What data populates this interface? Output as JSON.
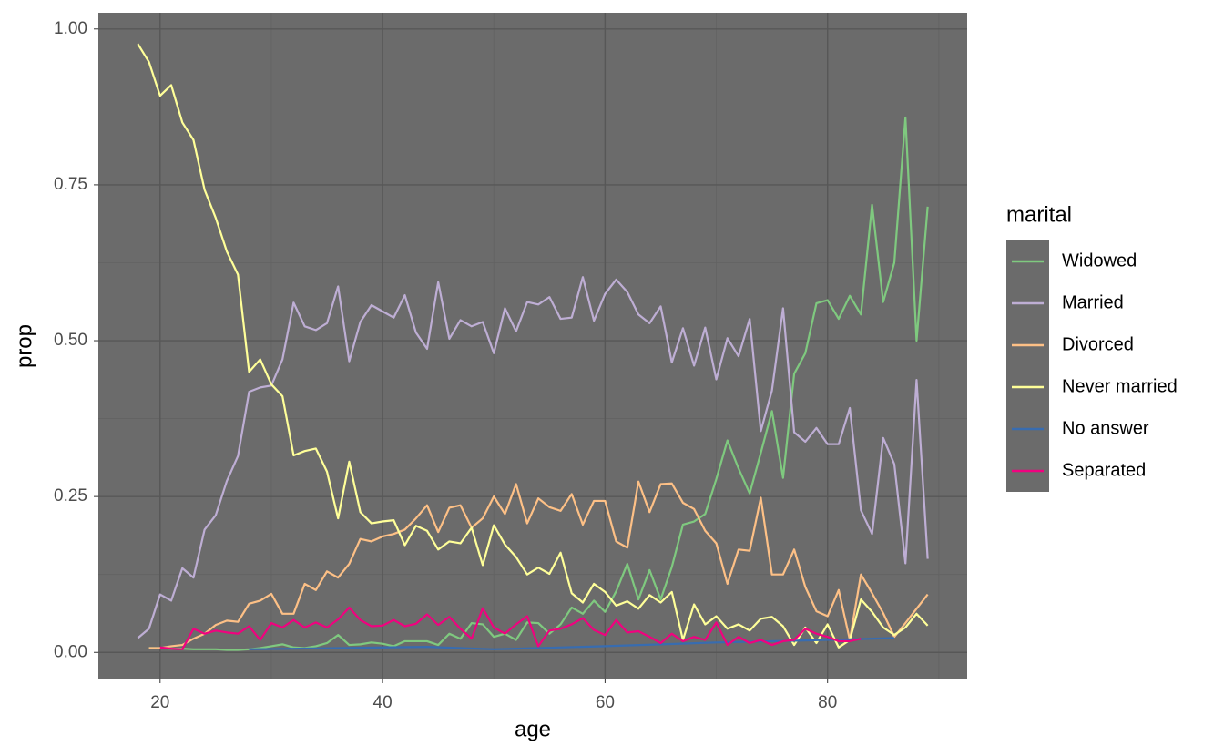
{
  "chart_data": {
    "type": "line",
    "x_label": "age",
    "y_label": "prop",
    "legend_title": "marital",
    "legend_position": "right",
    "grid": true,
    "xlim": [
      14.45,
      92.55
    ],
    "ylim": [
      -0.042,
      1.026
    ],
    "xticks": [
      20,
      40,
      60,
      80
    ],
    "yticks": [
      {
        "value": 0,
        "label": "0.00"
      },
      {
        "value": 0.25,
        "label": "0.25"
      },
      {
        "value": 0.5,
        "label": "0.50"
      },
      {
        "value": 0.75,
        "label": "0.75"
      },
      {
        "value": 1,
        "label": "1.00"
      }
    ],
    "xminor": [
      30,
      50,
      70,
      90
    ],
    "yminor": [
      0.125,
      0.375,
      0.625,
      0.875
    ],
    "x": [
      18,
      19,
      20,
      21,
      22,
      23,
      24,
      25,
      26,
      27,
      28,
      29,
      30,
      31,
      32,
      33,
      34,
      35,
      36,
      37,
      38,
      39,
      40,
      41,
      42,
      43,
      44,
      45,
      46,
      47,
      48,
      49,
      50,
      51,
      52,
      53,
      54,
      55,
      56,
      57,
      58,
      59,
      60,
      61,
      62,
      63,
      64,
      65,
      66,
      67,
      68,
      69,
      70,
      71,
      72,
      73,
      74,
      75,
      76,
      77,
      78,
      79,
      80,
      81,
      82,
      83,
      84,
      85,
      86,
      87,
      88,
      89
    ],
    "series": [
      {
        "name": "Widowed",
        "color": "#7fc97f",
        "values": [
          null,
          0.007,
          0.007,
          0.006,
          0.006,
          0.005,
          0.005,
          0.005,
          0.004,
          0.004,
          0.005,
          0.007,
          0.01,
          0.013,
          0.008,
          0.007,
          0.01,
          0.015,
          0.028,
          0.012,
          0.013,
          0.016,
          0.014,
          0.01,
          0.018,
          0.018,
          0.018,
          0.012,
          0.03,
          0.022,
          0.047,
          0.045,
          0.025,
          0.03,
          0.02,
          0.048,
          0.047,
          0.03,
          0.045,
          0.072,
          0.062,
          0.083,
          0.065,
          0.098,
          0.142,
          0.085,
          0.132,
          0.085,
          0.137,
          0.205,
          0.21,
          0.222,
          0.278,
          0.34,
          0.295,
          0.255,
          0.32,
          0.387,
          0.28,
          0.447,
          0.48,
          0.56,
          0.565,
          0.535,
          0.572,
          0.542,
          0.718,
          0.562,
          0.625,
          0.858,
          0.5,
          0.715
        ]
      },
      {
        "name": "Married",
        "color": "#beaed4",
        "values": [
          0.023,
          0.038,
          0.093,
          0.083,
          0.135,
          0.12,
          0.197,
          0.22,
          0.275,
          0.315,
          0.418,
          0.425,
          0.428,
          0.47,
          0.561,
          0.523,
          0.517,
          0.528,
          0.587,
          0.467,
          0.53,
          0.557,
          0.547,
          0.537,
          0.573,
          0.513,
          0.487,
          0.594,
          0.503,
          0.533,
          0.523,
          0.53,
          0.48,
          0.552,
          0.515,
          0.562,
          0.558,
          0.57,
          0.535,
          0.537,
          0.602,
          0.532,
          0.575,
          0.598,
          0.578,
          0.542,
          0.528,
          0.555,
          0.465,
          0.52,
          0.46,
          0.521,
          0.438,
          0.504,
          0.475,
          0.535,
          0.355,
          0.42,
          0.552,
          0.353,
          0.338,
          0.36,
          0.334,
          0.334,
          0.392,
          0.228,
          0.19,
          0.344,
          0.302,
          0.143,
          0.437,
          0.15
        ]
      },
      {
        "name": "Divorced",
        "color": "#fdc086",
        "values": [
          null,
          0.007,
          0.007,
          0.01,
          0.012,
          0.022,
          0.03,
          0.044,
          0.051,
          0.049,
          0.078,
          0.083,
          0.094,
          0.062,
          0.062,
          0.11,
          0.1,
          0.13,
          0.12,
          0.142,
          0.182,
          0.178,
          0.186,
          0.19,
          0.197,
          0.215,
          0.236,
          0.193,
          0.232,
          0.236,
          0.2,
          0.215,
          0.25,
          0.222,
          0.27,
          0.207,
          0.247,
          0.233,
          0.227,
          0.254,
          0.205,
          0.243,
          0.243,
          0.178,
          0.168,
          0.274,
          0.225,
          0.27,
          0.271,
          0.24,
          0.23,
          0.195,
          0.175,
          0.11,
          0.165,
          0.163,
          0.248,
          0.125,
          0.125,
          0.165,
          0.105,
          0.066,
          0.058,
          0.1,
          0.02,
          0.125,
          0.095,
          0.063,
          0.025,
          0.047,
          0.07,
          0.093
        ]
      },
      {
        "name": "Never married",
        "color": "#ffff99",
        "values": [
          0.976,
          0.947,
          0.893,
          0.91,
          0.85,
          0.822,
          0.742,
          0.697,
          0.643,
          0.606,
          0.45,
          0.47,
          0.43,
          0.411,
          0.316,
          0.323,
          0.327,
          0.29,
          0.215,
          0.306,
          0.225,
          0.207,
          0.21,
          0.212,
          0.172,
          0.203,
          0.195,
          0.165,
          0.178,
          0.175,
          0.2,
          0.14,
          0.204,
          0.173,
          0.153,
          0.125,
          0.136,
          0.126,
          0.16,
          0.095,
          0.08,
          0.11,
          0.097,
          0.075,
          0.082,
          0.07,
          0.092,
          0.08,
          0.097,
          0.02,
          0.077,
          0.045,
          0.058,
          0.038,
          0.045,
          0.035,
          0.054,
          0.057,
          0.042,
          0.012,
          0.04,
          0.015,
          0.045,
          0.008,
          0.02,
          0.085,
          0.065,
          0.04,
          0.028,
          0.04,
          0.062,
          0.043
        ]
      },
      {
        "name": "No answer",
        "color": "#386cb0",
        "x": [
          28,
          40,
          44,
          50,
          60,
          70,
          80,
          86
        ],
        "values": [
          0.005,
          0.008,
          0.009,
          0.005,
          0.01,
          0.016,
          0.02,
          0.023
        ]
      },
      {
        "name": "Separated",
        "color": "#f0027f",
        "values": [
          null,
          null,
          0.008,
          0.006,
          0.005,
          0.038,
          0.03,
          0.035,
          0.032,
          0.03,
          0.042,
          0.02,
          0.047,
          0.04,
          0.052,
          0.04,
          0.048,
          0.04,
          0.053,
          0.072,
          0.052,
          0.042,
          0.043,
          0.052,
          0.042,
          0.046,
          0.061,
          0.044,
          0.057,
          0.038,
          0.022,
          0.071,
          0.04,
          0.03,
          0.045,
          0.058,
          0.01,
          0.035,
          0.038,
          0.045,
          0.055,
          0.036,
          0.028,
          0.052,
          0.032,
          0.034,
          0.025,
          0.015,
          0.03,
          0.018,
          0.025,
          0.02,
          0.048,
          0.012,
          0.025,
          0.015,
          0.02,
          0.012,
          0.018,
          0.02,
          0.038,
          0.03,
          0.025,
          0.018,
          0.018,
          0.022,
          null,
          null,
          null,
          null,
          null,
          null
        ]
      }
    ]
  }
}
